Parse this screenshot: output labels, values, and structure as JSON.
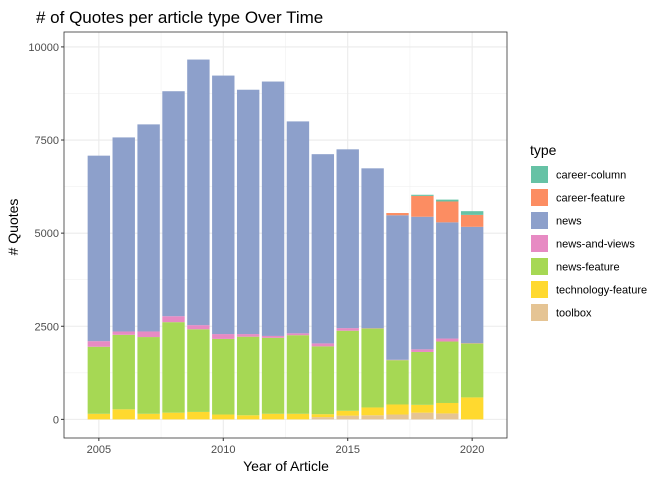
{
  "chart_data": {
    "type": "bar",
    "stacked": true,
    "title": "# of Quotes per article type Over Time",
    "xlabel": "Year of Article",
    "ylabel": "# Quotes",
    "xlim": [
      2003.6,
      2021.4
    ],
    "ylim": [
      -500,
      10400
    ],
    "xticks": [
      2005,
      2010,
      2015,
      2020
    ],
    "yticks": [
      0,
      2500,
      5000,
      7500,
      10000
    ],
    "ytick_labels": [
      "0",
      "2500",
      "5000",
      "7500",
      "10000"
    ],
    "grid": true,
    "legend": {
      "title": "type",
      "position": "right"
    },
    "x": [
      2005,
      2006,
      2007,
      2008,
      2009,
      2010,
      2011,
      2012,
      2013,
      2014,
      2015,
      2016,
      2017,
      2018,
      2019,
      2020
    ],
    "series": [
      {
        "name": "toolbox",
        "color": "#E5C494",
        "values": [
          0,
          0,
          0,
          0,
          0,
          0,
          0,
          0,
          0,
          60,
          100,
          110,
          130,
          180,
          160,
          0
        ]
      },
      {
        "name": "technology-feature",
        "color": "#FFD92F",
        "values": [
          150,
          270,
          150,
          180,
          200,
          130,
          110,
          150,
          150,
          80,
          130,
          210,
          270,
          210,
          280,
          590
        ]
      },
      {
        "name": "news-feature",
        "color": "#A6D854",
        "values": [
          1800,
          2000,
          2060,
          2430,
          2220,
          2030,
          2110,
          2040,
          2110,
          1820,
          2150,
          2120,
          1190,
          1420,
          1650,
          1450
        ]
      },
      {
        "name": "news-and-views",
        "color": "#E78AC3",
        "values": [
          150,
          90,
          150,
          160,
          110,
          130,
          70,
          50,
          50,
          80,
          70,
          10,
          10,
          70,
          80,
          10
        ]
      },
      {
        "name": "news",
        "color": "#8DA0CB",
        "values": [
          4980,
          5210,
          5560,
          6040,
          7130,
          6940,
          6560,
          6830,
          5690,
          5080,
          4800,
          4290,
          3880,
          3560,
          3120,
          3120
        ]
      },
      {
        "name": "career-feature",
        "color": "#FC8D62",
        "values": [
          0,
          0,
          0,
          0,
          0,
          0,
          0,
          0,
          0,
          0,
          0,
          0,
          60,
          560,
          560,
          320
        ]
      },
      {
        "name": "career-column",
        "color": "#66C2A5",
        "values": [
          0,
          0,
          0,
          0,
          0,
          0,
          0,
          0,
          0,
          0,
          0,
          0,
          0,
          30,
          50,
          100
        ]
      }
    ]
  }
}
